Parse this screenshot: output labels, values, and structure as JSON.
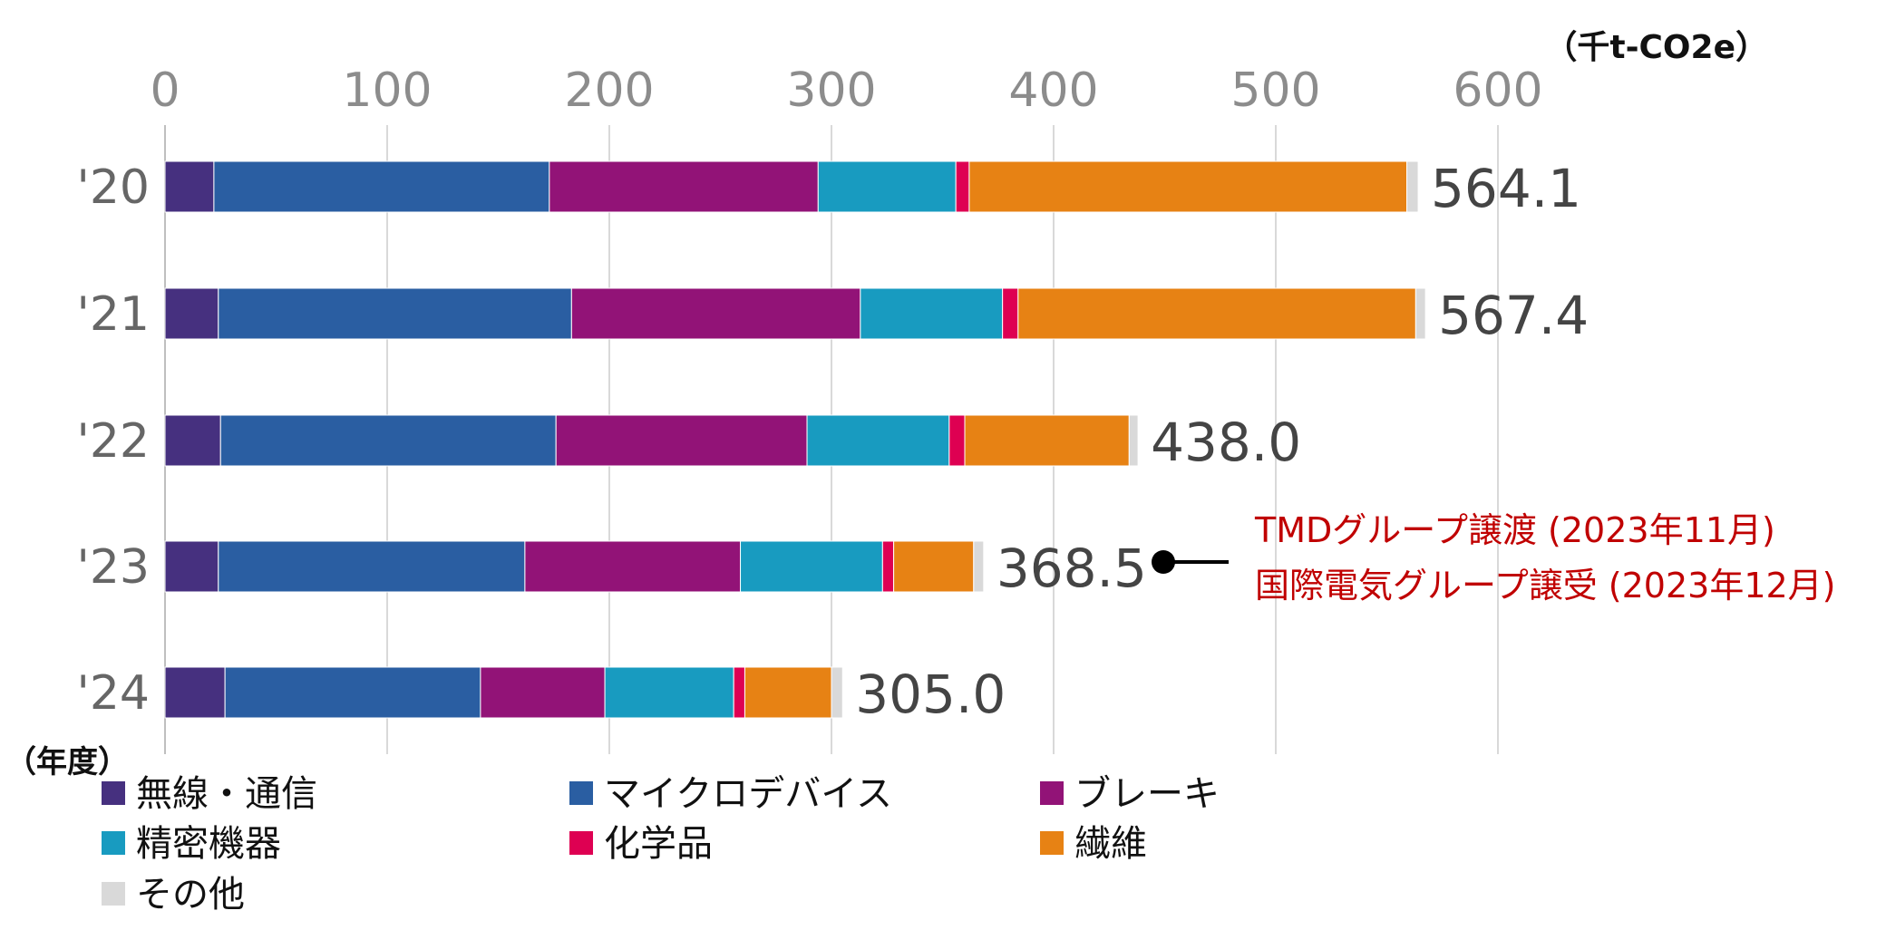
{
  "chart_data": {
    "type": "bar",
    "orientation": "horizontal",
    "stacked": true,
    "unit": "（千t-CO2e）",
    "ylabel": "（年度）",
    "xlim": [
      0,
      600
    ],
    "xticks": [
      0,
      100,
      200,
      300,
      400,
      500,
      600
    ],
    "grid": true,
    "legend_position": "bottom",
    "categories": [
      "'20",
      "'21",
      "'22",
      "'23",
      "'24"
    ],
    "series": [
      {
        "name": "無線・通信",
        "color": "#46307f",
        "values": [
          22,
          24,
          25,
          24,
          27
        ]
      },
      {
        "name": "マイクロデバイス",
        "color": "#2a5ea2",
        "values": [
          151,
          159,
          151,
          138,
          115
        ]
      },
      {
        "name": "ブレーキ",
        "color": "#921377",
        "values": [
          121,
          130,
          113,
          97,
          56
        ]
      },
      {
        "name": "精密機器",
        "color": "#189bc0",
        "values": [
          62,
          64,
          64,
          64,
          58
        ]
      },
      {
        "name": "化学品",
        "color": "#de0052",
        "values": [
          6,
          7,
          7,
          5,
          5
        ]
      },
      {
        "name": "繊維",
        "color": "#e78214",
        "values": [
          197,
          179,
          74,
          36,
          39
        ]
      },
      {
        "name": "その他",
        "color": "#d9d9d9",
        "values": [
          5.1,
          4.4,
          4.0,
          4.5,
          5.0
        ]
      }
    ],
    "totals": [
      "564.1",
      "567.4",
      "438.0",
      "368.5",
      "305.0"
    ],
    "annotation": {
      "category": "'23",
      "color": "#c00000",
      "lines": [
        "TMDグループ譲渡 (2023年11月)",
        "国際電気グループ譲受 (2023年12月)"
      ]
    }
  }
}
